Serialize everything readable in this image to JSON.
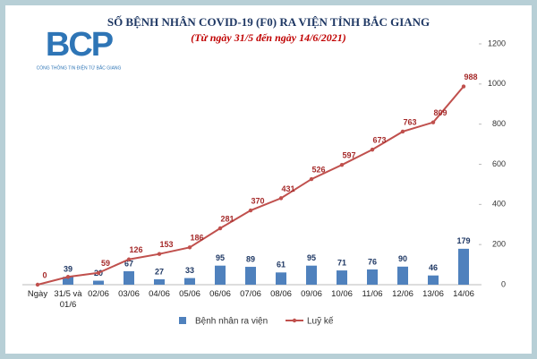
{
  "chart_data": {
    "type": "combo",
    "title": "SỐ BỆNH NHÂN COVID-19 (F0) RA VIỆN TỈNH BẮC GIANG",
    "subtitle": "(Từ ngày 31/5 đến ngày 14/6/2021)",
    "logo": "BCP",
    "logo_caption": "CỔNG THÔNG TIN ĐIỆN TỬ BẮC GIANG",
    "categories": [
      "Ngày",
      "31/5 và 01/6",
      "02/06",
      "03/06",
      "04/06",
      "05/06",
      "06/06",
      "07/06",
      "08/06",
      "09/06",
      "10/06",
      "11/06",
      "12/06",
      "13/06",
      "14/06"
    ],
    "series": [
      {
        "name": "Bệnh nhân ra viện",
        "type": "bar",
        "color": "#4f81bd",
        "values": [
          null,
          39,
          20,
          67,
          27,
          33,
          95,
          89,
          61,
          95,
          71,
          76,
          90,
          46,
          179
        ]
      },
      {
        "name": "Luỹ kế",
        "type": "line",
        "color": "#c0504d",
        "values": [
          0,
          39,
          59,
          126,
          153,
          186,
          281,
          370,
          431,
          526,
          597,
          673,
          763,
          809,
          988
        ],
        "value_labels": [
          "0",
          null,
          "59",
          "126",
          "153",
          "186",
          "281",
          "370",
          "431",
          "526",
          "597",
          "673",
          "763",
          "809",
          "988"
        ]
      }
    ],
    "ylim": [
      0,
      1200
    ],
    "yticks": [
      0,
      200,
      400,
      600,
      800,
      1000,
      1200
    ],
    "grid": false
  }
}
